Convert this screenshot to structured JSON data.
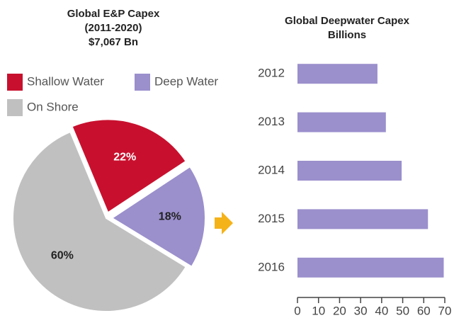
{
  "chart_data": [
    {
      "type": "pie",
      "title": [
        "Global E&P Capex",
        "(2011-2020)",
        "$7,067 Bn"
      ],
      "categories": [
        "Shallow Water",
        "Deep Water",
        "On Shore"
      ],
      "values": [
        22,
        18,
        60
      ],
      "value_labels": [
        "22%",
        "18%",
        "60%"
      ],
      "colors": [
        "#c8102e",
        "#9b8fcc",
        "#c0c0c0"
      ],
      "label_colors": [
        "#ffffff",
        "#222222",
        "#222222"
      ],
      "exploded": [
        true,
        true,
        false
      ]
    },
    {
      "type": "hbar",
      "title": [
        "Global Deepwater Capex",
        "Billions"
      ],
      "categories": [
        "2012",
        "2013",
        "2014",
        "2015",
        "2016"
      ],
      "values": [
        38,
        42,
        49.5,
        62,
        69.5
      ],
      "color": "#9b8fcc",
      "xlim": [
        0,
        70
      ],
      "xticks": [
        0,
        10,
        20,
        30,
        40,
        50,
        60,
        70
      ]
    }
  ]
}
